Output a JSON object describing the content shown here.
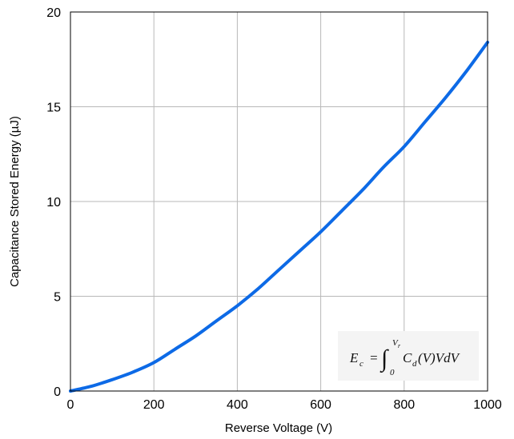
{
  "chart_data": {
    "type": "line",
    "title": "",
    "xlabel": "Reverse Voltage (V)",
    "ylabel": "Capacitance Stored Energy (µJ)",
    "xlim": [
      0,
      1000
    ],
    "ylim": [
      0,
      20
    ],
    "xticks": [
      "0",
      "200",
      "400",
      "600",
      "800",
      "1000"
    ],
    "yticks": [
      "0",
      "5",
      "10",
      "15",
      "20"
    ],
    "grid": true,
    "series": [
      {
        "color": "#0d6ae6",
        "x": [
          0,
          50,
          100,
          150,
          200,
          250,
          300,
          350,
          400,
          450,
          500,
          550,
          600,
          650,
          700,
          750,
          800,
          850,
          900,
          950,
          1000
        ],
        "y": [
          0,
          0.25,
          0.6,
          1.0,
          1.5,
          2.2,
          2.9,
          3.7,
          4.5,
          5.4,
          6.4,
          7.4,
          8.4,
          9.5,
          10.6,
          11.8,
          12.9,
          14.2,
          15.5,
          16.9,
          18.4
        ]
      }
    ],
    "annotation": {
      "lhs": "E",
      "lhs_sub": "c",
      "equals": "=",
      "integral": "∫",
      "upper": "V",
      "upper_sub": "r",
      "lower": "0",
      "integrand": "C",
      "integrand_sub": "d",
      "tail": "(V)VdV"
    }
  }
}
